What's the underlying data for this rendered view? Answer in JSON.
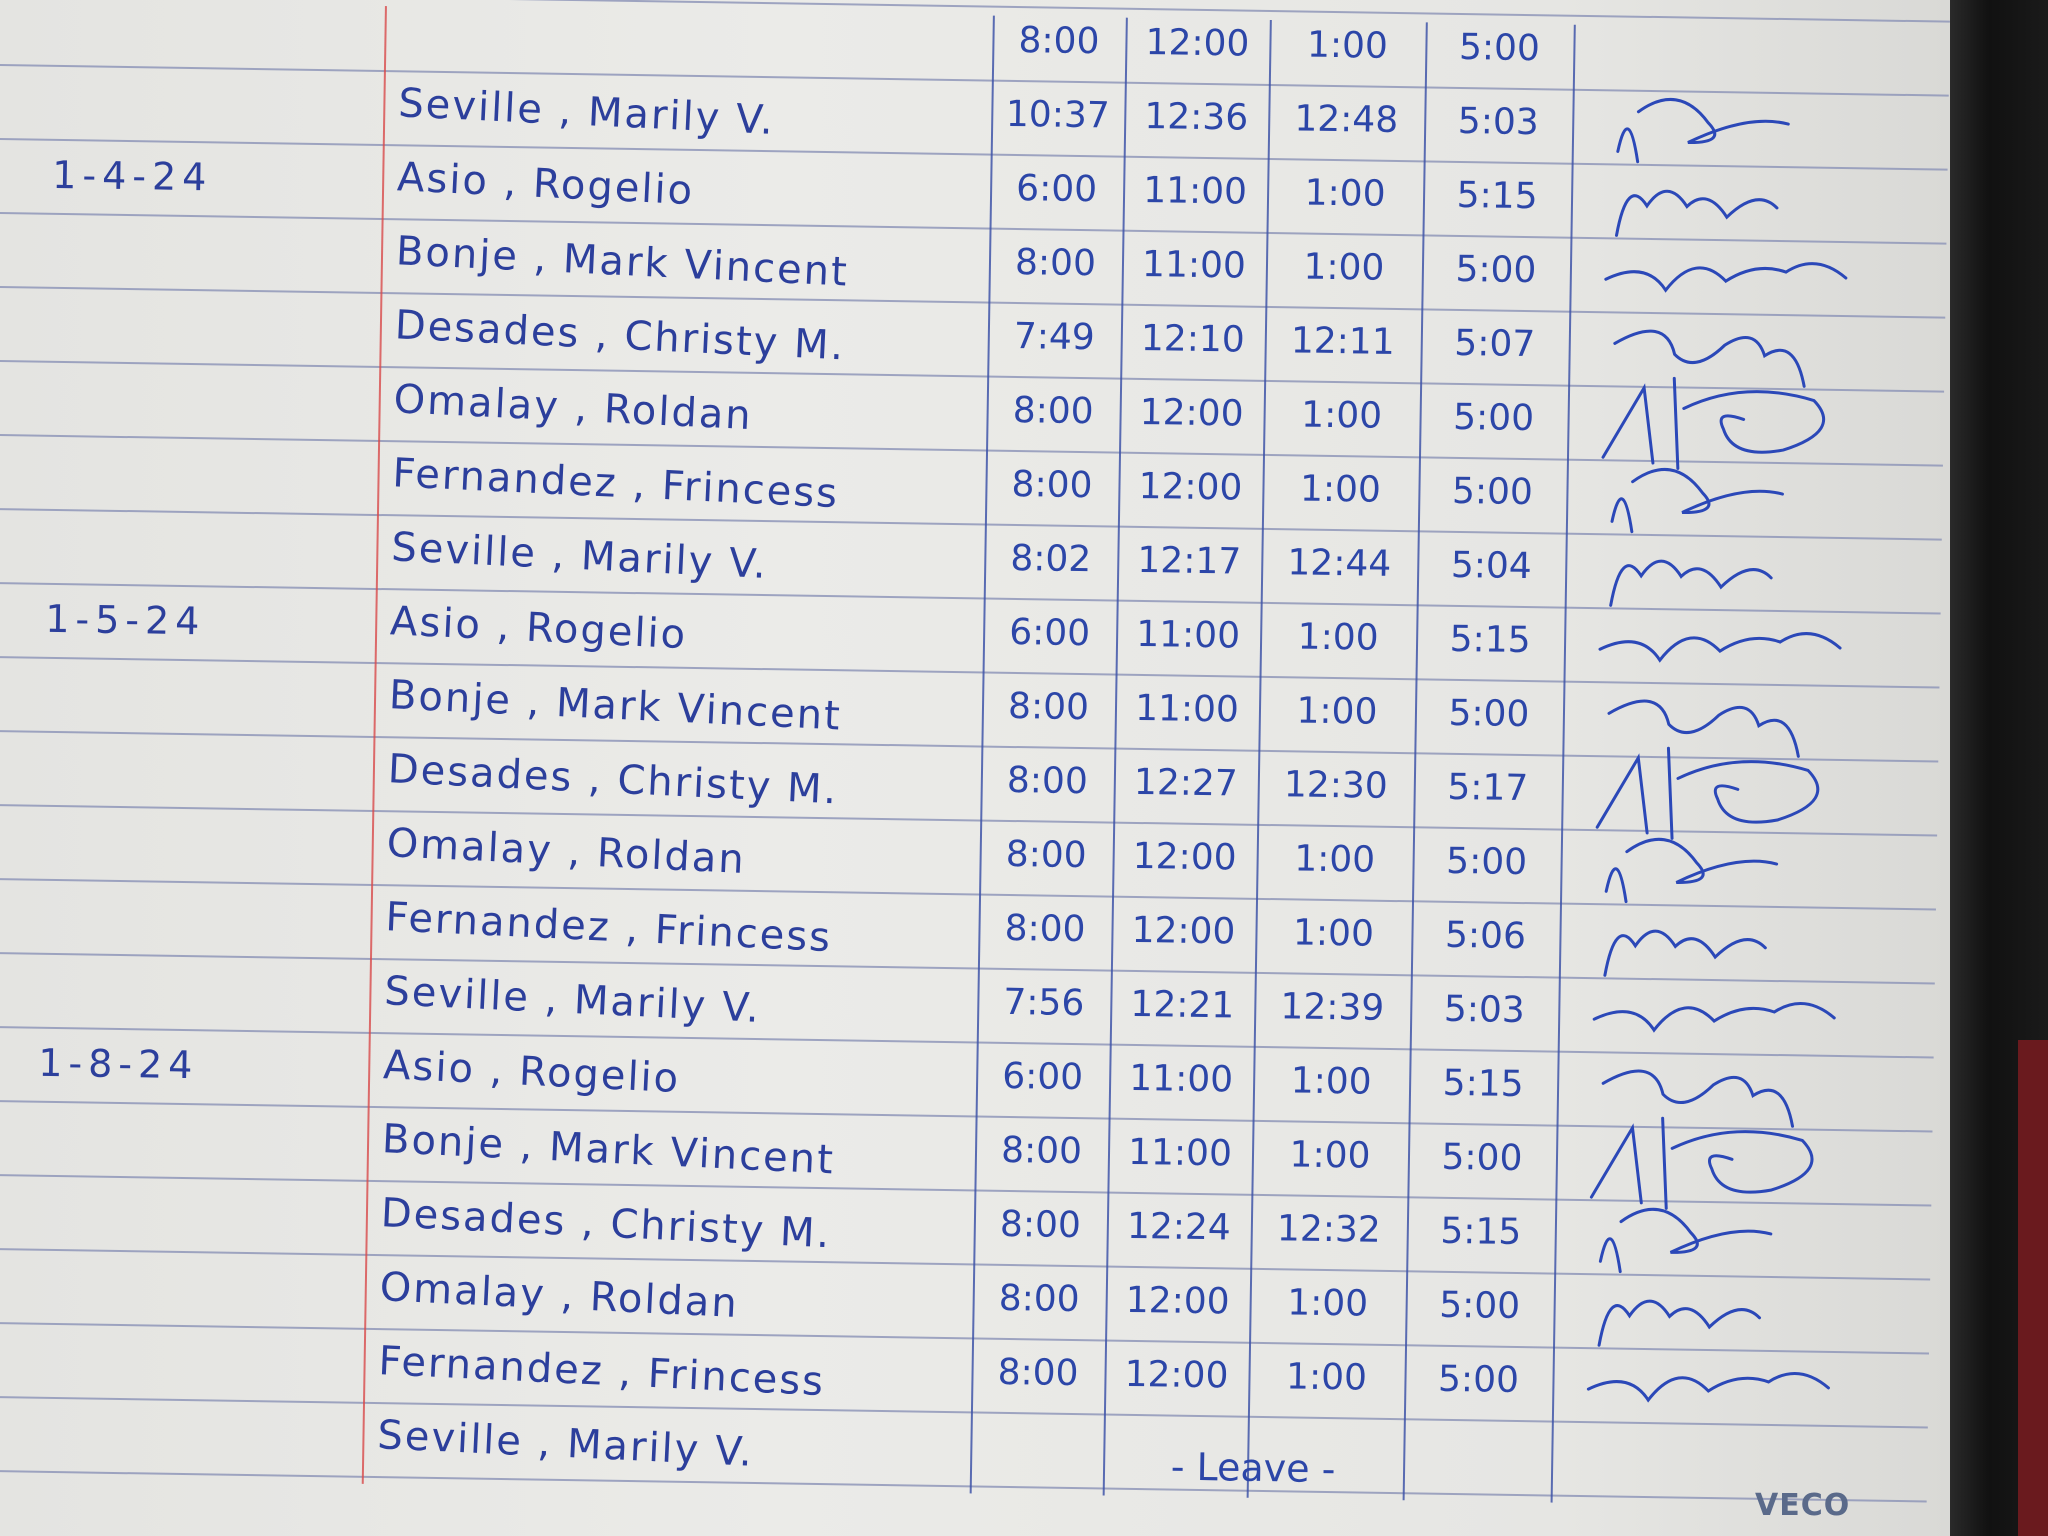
{
  "log": {
    "rows": [
      {
        "date": "",
        "name": "",
        "times": [
          "8:00",
          "12:00",
          "1:00",
          "5:00"
        ],
        "remark": ""
      },
      {
        "date": "",
        "name": "Seville , Marily V.",
        "times": [
          "10:37",
          "12:36",
          "12:48",
          "5:03"
        ],
        "remark": ""
      },
      {
        "date": "1-4-24",
        "name": "Asio , Rogelio",
        "times": [
          "6:00",
          "11:00",
          "1:00",
          "5:15"
        ],
        "remark": ""
      },
      {
        "date": "",
        "name": "Bonje , Mark Vincent",
        "times": [
          "8:00",
          "11:00",
          "1:00",
          "5:00"
        ],
        "remark": ""
      },
      {
        "date": "",
        "name": "Desades , Christy M.",
        "times": [
          "7:49",
          "12:10",
          "12:11",
          "5:07"
        ],
        "remark": ""
      },
      {
        "date": "",
        "name": "Omalay , Roldan",
        "times": [
          "8:00",
          "12:00",
          "1:00",
          "5:00"
        ],
        "remark": ""
      },
      {
        "date": "",
        "name": "Fernandez , Frincess",
        "times": [
          "8:00",
          "12:00",
          "1:00",
          "5:00"
        ],
        "remark": ""
      },
      {
        "date": "",
        "name": "Seville , Marily V.",
        "times": [
          "8:02",
          "12:17",
          "12:44",
          "5:04"
        ],
        "remark": ""
      },
      {
        "date": "1-5-24",
        "name": "Asio , Rogelio",
        "times": [
          "6:00",
          "11:00",
          "1:00",
          "5:15"
        ],
        "remark": ""
      },
      {
        "date": "",
        "name": "Bonje , Mark Vincent",
        "times": [
          "8:00",
          "11:00",
          "1:00",
          "5:00"
        ],
        "remark": ""
      },
      {
        "date": "",
        "name": "Desades , Christy M.",
        "times": [
          "8:00",
          "12:27",
          "12:30",
          "5:17"
        ],
        "remark": ""
      },
      {
        "date": "",
        "name": "Omalay , Roldan",
        "times": [
          "8:00",
          "12:00",
          "1:00",
          "5:00"
        ],
        "remark": ""
      },
      {
        "date": "",
        "name": "Fernandez , Frincess",
        "times": [
          "8:00",
          "12:00",
          "1:00",
          "5:06"
        ],
        "remark": ""
      },
      {
        "date": "",
        "name": "Seville , Marily V.",
        "times": [
          "7:56",
          "12:21",
          "12:39",
          "5:03"
        ],
        "remark": ""
      },
      {
        "date": "1-8-24",
        "name": "Asio , Rogelio",
        "times": [
          "6:00",
          "11:00",
          "1:00",
          "5:15"
        ],
        "remark": ""
      },
      {
        "date": "",
        "name": "Bonje , Mark Vincent",
        "times": [
          "8:00",
          "11:00",
          "1:00",
          "5:00"
        ],
        "remark": ""
      },
      {
        "date": "",
        "name": "Desades , Christy M.",
        "times": [
          "8:00",
          "12:24",
          "12:32",
          "5:15"
        ],
        "remark": ""
      },
      {
        "date": "",
        "name": "Omalay , Roldan",
        "times": [
          "8:00",
          "12:00",
          "1:00",
          "5:00"
        ],
        "remark": ""
      },
      {
        "date": "",
        "name": "Fernandez , Frincess",
        "times": [
          "8:00",
          "12:00",
          "1:00",
          "5:00"
        ],
        "remark": ""
      },
      {
        "date": "",
        "name": "Seville , Marily V.",
        "times": [
          "",
          "",
          "",
          ""
        ],
        "remark": "- Leave -"
      }
    ]
  },
  "footer": {
    "brand": "VECO"
  },
  "colors": {
    "ink": "#2c3f9c",
    "margin": "#d84a4a",
    "rule": "#8f97b8"
  }
}
